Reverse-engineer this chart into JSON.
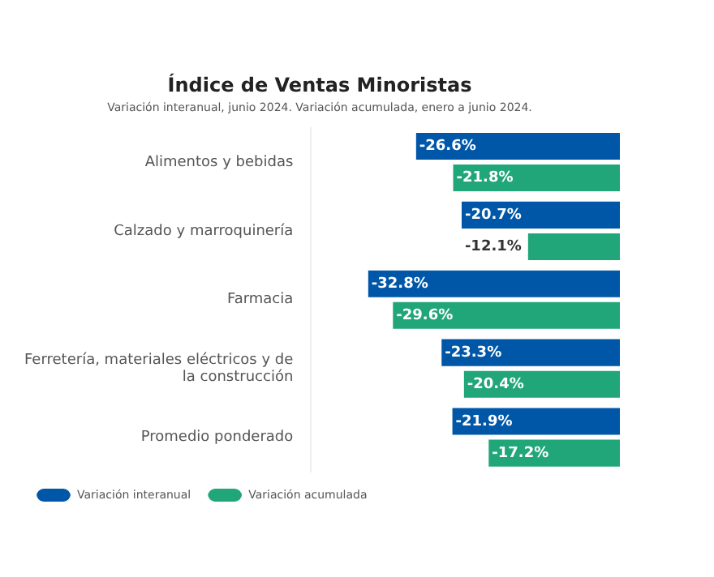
{
  "chart_data": {
    "type": "bar",
    "orientation": "horizontal",
    "title": "Índice de Ventas Minoristas",
    "subtitle": "Variación interanual, junio 2024. Variación acumulada, enero a junio 2024.",
    "categories": [
      "Alimentos y bebidas",
      "Calzado y marroquinería",
      "Farmacia",
      "Ferretería, materiales eléctricos y de la construcción",
      "Promedio ponderado"
    ],
    "series": [
      {
        "name": "Variación interanual",
        "color": "#0057a8",
        "values": [
          -26.6,
          -20.7,
          -32.8,
          -23.3,
          -21.9
        ],
        "value_labels": [
          "-26.6%",
          "-20.7%",
          "-32.8%",
          "-23.3%",
          "-21.9%"
        ]
      },
      {
        "name": "Variación acumulada",
        "color": "#21a67a",
        "values": [
          -21.8,
          -12.1,
          -29.6,
          -20.4,
          -17.2
        ],
        "value_labels": [
          "-21.8%",
          "-12.1%",
          "-29.6%",
          "-20.4%",
          "-17.2%"
        ]
      }
    ],
    "legend": "bottom",
    "tick_labels": "y"
  }
}
